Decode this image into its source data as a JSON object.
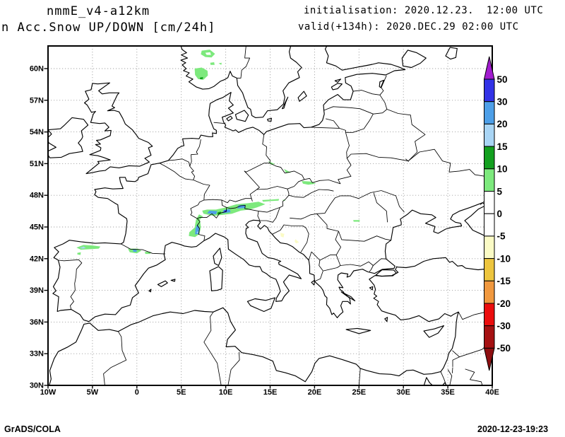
{
  "header": {
    "model": "nmmE_v4-a12km",
    "product": "n Acc.Snow UP/DOWN [cm/24h]",
    "init_label": "initialisation: 2020.12.23.  12:00 UTC",
    "valid_label": "valid(+134h): 2020.DEC.29 02:00 UTC"
  },
  "footer": {
    "left": "GrADS/COLA",
    "right": "2020-12-23-19:23"
  },
  "axes": {
    "lat_tick_labels": [
      "60N",
      "57N",
      "54N",
      "51N",
      "48N",
      "45N",
      "42N",
      "39N",
      "36N",
      "33N",
      "30N"
    ],
    "lat_tick_values": [
      60,
      57,
      54,
      51,
      48,
      45,
      42,
      39,
      36,
      33,
      30
    ],
    "lon_tick_labels": [
      "10W",
      "5W",
      "0",
      "5E",
      "10E",
      "15E",
      "20E",
      "25E",
      "30E",
      "35E",
      "40E"
    ],
    "lon_tick_values": [
      -10,
      -5,
      0,
      5,
      10,
      15,
      20,
      25,
      30,
      35,
      40
    ],
    "grid_lats": [
      33,
      36,
      39,
      42,
      45,
      48,
      51,
      54,
      57,
      60
    ],
    "grid_lons": [
      -5,
      0,
      5,
      10,
      15,
      20,
      25,
      30,
      35
    ]
  },
  "colorbar": {
    "tick_labels": [
      "50",
      "30",
      "20",
      "15",
      "10",
      "5",
      "0",
      "-5",
      "-10",
      "-15",
      "-20",
      "-30",
      "-50"
    ],
    "tick_values": [
      50,
      30,
      20,
      15,
      10,
      5,
      0,
      -5,
      -10,
      -15,
      -20,
      -30,
      -50
    ],
    "segment_colors": [
      "#3232E6",
      "#4D9FE8",
      "#A9D5F5",
      "#13A01F",
      "#7DE97D",
      "#FFFFFF",
      "#FFFFFF",
      "#FBFBC5",
      "#EDC53E",
      "#F0983E",
      "#EB0D0D",
      "#A51112"
    ],
    "arrow_top_color": "#A21CD0",
    "arrow_bottom_color": "#8E0E10",
    "units": "cm/24h"
  },
  "map_data": {
    "units": "cm/24h",
    "palette": {
      "lg": "#7DE97D",
      "dg": "#13A01F",
      "sb": "#4D9FE8",
      "lb": "#A9D5F5",
      "ind": "#3232E6",
      "py": "#FBFBC5",
      "wh": "#FFFFFF"
    },
    "patches": [
      {
        "name": "norway-ring",
        "level": "5-10",
        "color": "lg",
        "poly": [
          [
            7.3,
            61.7
          ],
          [
            8.2,
            61.8
          ],
          [
            8.8,
            61.4
          ],
          [
            8.4,
            61.05
          ],
          [
            7.7,
            61.1
          ],
          [
            7.2,
            61.35
          ]
        ]
      },
      {
        "name": "norway-ring-hole",
        "level": "0-5",
        "color": "wh",
        "poly": [
          [
            7.7,
            61.5
          ],
          [
            8.25,
            61.55
          ],
          [
            8.35,
            61.3
          ],
          [
            7.85,
            61.3
          ]
        ]
      },
      {
        "name": "norway-speck-1",
        "level": "5-10",
        "color": "lg",
        "poly": [
          [
            8.25,
            60.55
          ],
          [
            8.7,
            60.6
          ],
          [
            8.75,
            60.35
          ],
          [
            8.3,
            60.35
          ]
        ]
      },
      {
        "name": "norway-speck-2",
        "level": "5-10",
        "color": "lg",
        "poly": [
          [
            9.2,
            60.5
          ],
          [
            9.55,
            60.55
          ],
          [
            9.5,
            60.35
          ]
        ]
      },
      {
        "name": "norway-blob",
        "level": "5-10",
        "color": "lg",
        "poly": [
          [
            6.5,
            60.0
          ],
          [
            7.3,
            60.1
          ],
          [
            7.95,
            59.8
          ],
          [
            8.0,
            59.35
          ],
          [
            7.5,
            58.95
          ],
          [
            6.9,
            59.0
          ],
          [
            6.55,
            59.4
          ]
        ]
      },
      {
        "name": "norway-core",
        "level": "10-15",
        "color": "dg",
        "poly": [
          [
            7.1,
            59.15
          ],
          [
            7.45,
            59.2
          ],
          [
            7.4,
            58.98
          ],
          [
            7.1,
            59.0
          ]
        ]
      },
      {
        "name": "cantabria-band",
        "level": "5-10",
        "color": "lg",
        "poly": [
          [
            -6.8,
            43.05
          ],
          [
            -6.0,
            43.3
          ],
          [
            -5.0,
            43.25
          ],
          [
            -4.1,
            43.15
          ],
          [
            -4.3,
            42.95
          ],
          [
            -5.3,
            42.9
          ],
          [
            -6.3,
            42.85
          ]
        ]
      },
      {
        "name": "cantabria-core",
        "level": "15-20",
        "color": "lb",
        "poly": [
          [
            -6.45,
            43.0
          ],
          [
            -6.0,
            43.15
          ],
          [
            -5.75,
            43.0
          ],
          [
            -6.1,
            42.95
          ]
        ]
      },
      {
        "name": "leon-speck",
        "level": "5-10",
        "color": "lg",
        "poly": [
          [
            -6.7,
            42.55
          ],
          [
            -6.3,
            42.6
          ],
          [
            -6.35,
            42.35
          ],
          [
            -6.7,
            42.4
          ]
        ]
      },
      {
        "name": "pyrenees-west",
        "level": "5-10",
        "color": "lg",
        "poly": [
          [
            -1.0,
            42.95
          ],
          [
            0.1,
            42.95
          ],
          [
            0.5,
            42.75
          ],
          [
            0.0,
            42.5
          ],
          [
            -0.8,
            42.6
          ]
        ]
      },
      {
        "name": "pyrenees-core",
        "level": "20-30",
        "color": "sb",
        "poly": [
          [
            -0.45,
            42.85
          ],
          [
            -0.05,
            42.85
          ],
          [
            0.0,
            42.65
          ],
          [
            -0.4,
            42.65
          ]
        ]
      },
      {
        "name": "pyrenees-east",
        "level": "5-10",
        "color": "lg",
        "poly": [
          [
            0.9,
            42.65
          ],
          [
            1.55,
            42.65
          ],
          [
            1.5,
            42.45
          ],
          [
            0.95,
            42.45
          ]
        ]
      },
      {
        "name": "alps-fr-band",
        "level": "5-10",
        "color": "lg",
        "poly": [
          [
            5.85,
            44.15
          ],
          [
            6.55,
            44.05
          ],
          [
            7.05,
            44.35
          ],
          [
            7.2,
            45.0
          ],
          [
            7.1,
            45.7
          ],
          [
            7.45,
            46.0
          ],
          [
            7.0,
            46.2
          ],
          [
            6.65,
            45.7
          ],
          [
            6.5,
            44.95
          ],
          [
            5.9,
            44.5
          ]
        ]
      },
      {
        "name": "alps-fr-core",
        "level": "20-30",
        "color": "sb",
        "poly": [
          [
            6.55,
            44.3
          ],
          [
            7.0,
            44.35
          ],
          [
            7.05,
            44.95
          ],
          [
            6.8,
            45.25
          ],
          [
            6.6,
            44.85
          ]
        ]
      },
      {
        "name": "alps-fr-dot",
        "level": "15-20",
        "color": "lb",
        "poly": [
          [
            6.7,
            44.5
          ],
          [
            6.95,
            44.6
          ],
          [
            6.9,
            44.4
          ]
        ]
      },
      {
        "name": "alps-main-band",
        "level": "5-10",
        "color": "lg",
        "poly": [
          [
            7.5,
            46.25
          ],
          [
            8.6,
            46.05
          ],
          [
            9.7,
            46.15
          ],
          [
            10.7,
            46.25
          ],
          [
            11.7,
            46.55
          ],
          [
            12.7,
            46.65
          ],
          [
            13.5,
            46.85
          ],
          [
            14.45,
            47.15
          ],
          [
            13.7,
            47.4
          ],
          [
            12.5,
            47.25
          ],
          [
            11.2,
            47.15
          ],
          [
            10.0,
            46.85
          ],
          [
            8.9,
            46.65
          ],
          [
            7.9,
            46.65
          ],
          [
            7.35,
            46.55
          ]
        ]
      },
      {
        "name": "alps-dark-rim",
        "level": "10-15",
        "color": "dg",
        "poly": [
          [
            9.05,
            46.2
          ],
          [
            9.5,
            46.25
          ],
          [
            9.45,
            46.45
          ],
          [
            9.1,
            46.4
          ]
        ]
      },
      {
        "name": "alps-core-1",
        "level": "20-30",
        "color": "sb",
        "poly": [
          [
            7.9,
            46.3
          ],
          [
            8.9,
            46.2
          ],
          [
            9.05,
            46.5
          ],
          [
            8.15,
            46.55
          ]
        ]
      },
      {
        "name": "alps-core-2",
        "level": "20-30",
        "color": "sb",
        "poly": [
          [
            9.6,
            46.3
          ],
          [
            10.55,
            46.4
          ],
          [
            10.45,
            46.7
          ],
          [
            9.75,
            46.6
          ]
        ]
      },
      {
        "name": "alps-core-3",
        "level": "20-30",
        "color": "sb",
        "poly": [
          [
            11.3,
            46.75
          ],
          [
            12.25,
            46.8
          ],
          [
            12.15,
            47.1
          ],
          [
            11.45,
            47.05
          ]
        ]
      },
      {
        "name": "alps-indigo-dot",
        "level": "30-50",
        "color": "ind",
        "poly": [
          [
            9.85,
            46.42
          ],
          [
            10.15,
            46.48
          ],
          [
            10.1,
            46.62
          ],
          [
            9.85,
            46.58
          ]
        ]
      },
      {
        "name": "austria-dash",
        "level": "5-10",
        "color": "lg",
        "poly": [
          [
            14.1,
            47.55
          ],
          [
            15.1,
            47.6
          ],
          [
            16.0,
            47.65
          ],
          [
            15.95,
            47.5
          ],
          [
            15.0,
            47.45
          ],
          [
            14.2,
            47.4
          ]
        ]
      },
      {
        "name": "austria-speck",
        "level": "5-10",
        "color": "lg",
        "poly": [
          [
            16.35,
            47.55
          ],
          [
            16.7,
            47.6
          ],
          [
            16.65,
            47.45
          ]
        ]
      },
      {
        "name": "sudetes-speck-1",
        "level": "5-10",
        "color": "lg",
        "poly": [
          [
            14.75,
            51.25
          ],
          [
            15.55,
            50.95
          ],
          [
            15.1,
            50.9
          ]
        ]
      },
      {
        "name": "sudetes-speck-2",
        "level": "5-10",
        "color": "lg",
        "poly": [
          [
            16.55,
            50.5
          ],
          [
            17.35,
            50.15
          ],
          [
            16.8,
            50.1
          ]
        ]
      },
      {
        "name": "tatras-dash",
        "level": "5-10",
        "color": "lg",
        "poly": [
          [
            18.55,
            49.35
          ],
          [
            19.6,
            49.3
          ],
          [
            20.15,
            49.1
          ],
          [
            19.3,
            49.0
          ],
          [
            18.7,
            49.1
          ]
        ]
      },
      {
        "name": "carpathia-dash",
        "level": "5-10",
        "color": "lg",
        "poly": [
          [
            24.35,
            45.65
          ],
          [
            25.1,
            45.65
          ],
          [
            25.05,
            45.5
          ],
          [
            24.4,
            45.5
          ]
        ]
      },
      {
        "name": "bosnia-yellow-1",
        "level": "-5--10",
        "color": "py",
        "poly": [
          [
            16.15,
            44.45
          ],
          [
            16.6,
            44.35
          ],
          [
            16.5,
            44.0
          ],
          [
            16.2,
            44.1
          ]
        ]
      },
      {
        "name": "bosnia-yellow-2",
        "level": "-5--10",
        "color": "py",
        "poly": [
          [
            17.85,
            43.85
          ],
          [
            18.25,
            43.55
          ],
          [
            17.9,
            43.45
          ],
          [
            17.75,
            43.65
          ]
        ]
      }
    ]
  }
}
